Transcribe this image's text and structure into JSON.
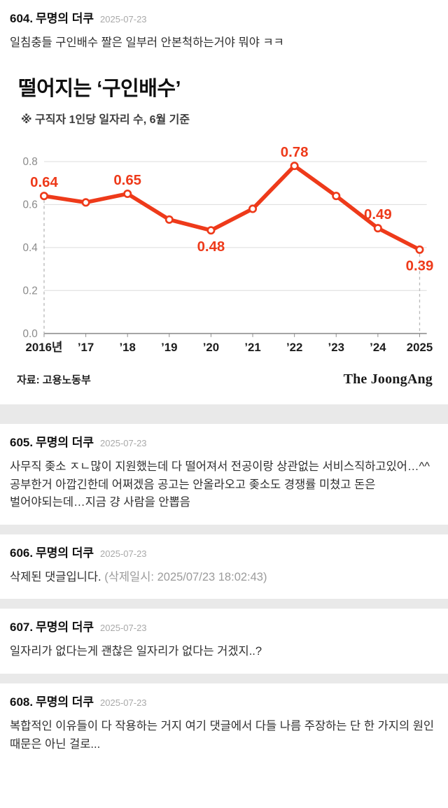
{
  "comments": [
    {
      "number": "604.",
      "author": "무명의 더쿠",
      "date": "2025-07-23",
      "body": "일침충들 구인배수 짤은 일부러 안본척하는거야 뭐야 ㅋㅋ"
    },
    {
      "number": "605.",
      "author": "무명의 더쿠",
      "date": "2025-07-23",
      "body": "사무직 좆소 ㅈㄴ많이 지원했는데 다 떨어져서 전공이랑 상관없는 서비스직하고있어…^^ 공부한거 아깝긴한데 어쩌겠음 공고는 안올라오고 좆소도 경쟁률 미쳤고 돈은 벌어야되는데…지금 걍 사람을 안뽑음"
    },
    {
      "number": "606.",
      "author": "무명의 더쿠",
      "date": "2025-07-23",
      "body": "삭제된 댓글입니다.",
      "deleted_info": "(삭제일시: 2025/07/23 18:02:43)"
    },
    {
      "number": "607.",
      "author": "무명의 더쿠",
      "date": "2025-07-23",
      "body": "일자리가 없다는게 괜찮은 일자리가 없다는 거겠지..?"
    },
    {
      "number": "608.",
      "author": "무명의 더쿠",
      "date": "2025-07-23",
      "body": "복합적인 이유들이 다 작용하는 거지 여기 댓글에서 다들 나름 주장하는 단 한 가지의 원인 때문은 아닌 걸로..."
    }
  ],
  "chart": {
    "title": "떨어지는 ‘구인배수’",
    "subtitle": "※ 구직자 1인당 일자리 수, 6월 기준",
    "source": "자료: 고용노동부",
    "logo": "The JoongAng"
  },
  "chart_data": {
    "type": "line",
    "title": "떨어지는 ‘구인배수’",
    "subtitle": "※ 구직자 1인당 일자리 수, 6월 기준",
    "categories": [
      "2016년",
      "’17",
      "’18",
      "’19",
      "’20",
      "’21",
      "’22",
      "’23",
      "’24",
      "2025"
    ],
    "values": [
      0.64,
      0.61,
      0.65,
      0.53,
      0.48,
      0.58,
      0.78,
      0.64,
      0.49,
      0.39
    ],
    "yticks": [
      0.0,
      0.2,
      0.4,
      0.6,
      0.8
    ],
    "ylim": [
      0,
      0.85
    ],
    "xlabel": "",
    "ylabel": "",
    "grid": true,
    "legend": false,
    "line_color": "#ee3a1a",
    "point_labels": [
      {
        "index": 0,
        "text": "0.64",
        "position": "above"
      },
      {
        "index": 2,
        "text": "0.65",
        "position": "above"
      },
      {
        "index": 4,
        "text": "0.48",
        "position": "below"
      },
      {
        "index": 6,
        "text": "0.78",
        "position": "above"
      },
      {
        "index": 8,
        "text": "0.49",
        "position": "above"
      },
      {
        "index": 9,
        "text": "0.39",
        "position": "below"
      }
    ],
    "dashed_guides": [
      0,
      9
    ],
    "source": "자료: 고용노동부"
  }
}
